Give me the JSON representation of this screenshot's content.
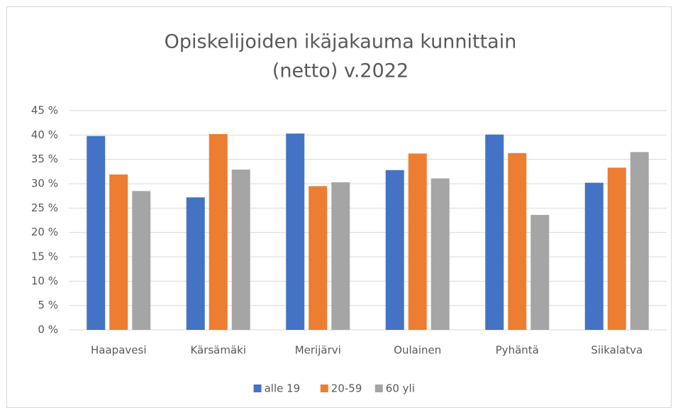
{
  "chart_data": {
    "type": "bar",
    "title": [
      "Opiskelijoiden ikäjakauma kunnittain",
      "(netto) v.2022"
    ],
    "categories": [
      "Haapavesi",
      "Kärsämäki",
      "Merijärvi",
      "Oulainen",
      "Pyhäntä",
      "Siikalatva"
    ],
    "series": [
      {
        "name": "alle 19",
        "color": "#4472c4",
        "values": [
          39.8,
          27.2,
          40.3,
          32.8,
          40.1,
          30.2
        ]
      },
      {
        "name": "20-59",
        "color": "#ed7d31",
        "values": [
          31.9,
          40.2,
          29.5,
          36.2,
          36.3,
          33.3
        ]
      },
      {
        "name": "60 yli",
        "color": "#a5a5a5",
        "values": [
          28.5,
          32.9,
          30.3,
          31.1,
          23.6,
          36.5
        ]
      }
    ],
    "ylim": [
      0,
      45
    ],
    "yticks": [
      {
        "value": 0,
        "label": "0 %"
      },
      {
        "value": 5,
        "label": "5 %"
      },
      {
        "value": 10,
        "label": "10 %"
      },
      {
        "value": 15,
        "label": "15 %"
      },
      {
        "value": 20,
        "label": "20 %"
      },
      {
        "value": 25,
        "label": "25 %"
      },
      {
        "value": 30,
        "label": "30 %"
      },
      {
        "value": 35,
        "label": "35 %"
      },
      {
        "value": 40,
        "label": "40 %"
      },
      {
        "value": 45,
        "label": "45 %"
      }
    ],
    "grid": true,
    "legend": "bottom"
  }
}
